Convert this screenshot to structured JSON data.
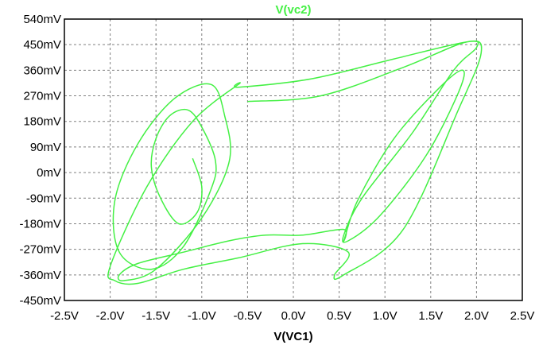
{
  "chart_data": {
    "type": "line",
    "title": "V(vc2)",
    "xlabel": "V(VC1)",
    "ylabel": "",
    "xlim": [
      -2.5,
      2.5
    ],
    "ylim": [
      -0.45,
      0.54
    ],
    "x_ticks": [
      "-2.5V",
      "-2.0V",
      "-1.5V",
      "-1.0V",
      "-0.5V",
      "0.0V",
      "0.5V",
      "1.0V",
      "1.5V",
      "2.0V",
      "2.5V"
    ],
    "y_ticks": [
      "540mV",
      "450mV",
      "360mV",
      "270mV",
      "180mV",
      "90mV",
      "0mV",
      "-90mV",
      "-180mV",
      "-270mV",
      "-360mV",
      "-450mV"
    ],
    "grid": true,
    "series_color": "#44f044",
    "series": [
      {
        "name": "V(vc2)",
        "x": [
          -1.1,
          -1.0,
          -1.05,
          -1.25,
          -1.45,
          -1.55,
          -1.5,
          -1.35,
          -1.15,
          -1.0,
          -0.85,
          -0.9,
          -1.2,
          -1.55,
          -1.9,
          -1.95,
          -1.7,
          -1.3,
          -0.9,
          -0.75,
          -0.7,
          -1.0,
          -1.5,
          -1.85,
          -1.9,
          -1.7,
          -1.2,
          -0.7,
          -0.3,
          0.1,
          0.55,
          0.55,
          0.7,
          1.1,
          1.6,
          1.85,
          1.8,
          1.45,
          0.95,
          0.6,
          0.55,
          0.75,
          1.3,
          1.75,
          2.0,
          1.9,
          1.1,
          0.2,
          -0.6,
          -0.6,
          -1.1,
          -1.6,
          -2.0,
          -1.95,
          -1.7,
          -1.2,
          -0.6,
          0.1,
          0.6,
          0.45,
          0.55,
          1.2,
          1.8,
          2.05,
          1.9,
          1.2,
          0.3,
          -0.5
        ],
        "y": [
          0.05,
          -0.05,
          -0.14,
          -0.18,
          -0.09,
          0.02,
          0.12,
          0.2,
          0.22,
          0.16,
          0.04,
          -0.06,
          -0.26,
          -0.34,
          -0.28,
          -0.1,
          0.1,
          0.26,
          0.31,
          0.2,
          0.04,
          -0.16,
          -0.34,
          -0.38,
          -0.36,
          -0.32,
          -0.28,
          -0.24,
          -0.22,
          -0.22,
          -0.2,
          -0.24,
          -0.1,
          0.12,
          0.3,
          0.36,
          0.28,
          0.06,
          -0.15,
          -0.24,
          -0.22,
          -0.09,
          0.14,
          0.36,
          0.44,
          0.46,
          0.4,
          0.33,
          0.3,
          0.31,
          0.18,
          -0.05,
          -0.33,
          -0.38,
          -0.39,
          -0.34,
          -0.3,
          -0.25,
          -0.28,
          -0.36,
          -0.36,
          -0.2,
          0.22,
          0.42,
          0.46,
          0.37,
          0.27,
          0.25
        ]
      }
    ]
  }
}
